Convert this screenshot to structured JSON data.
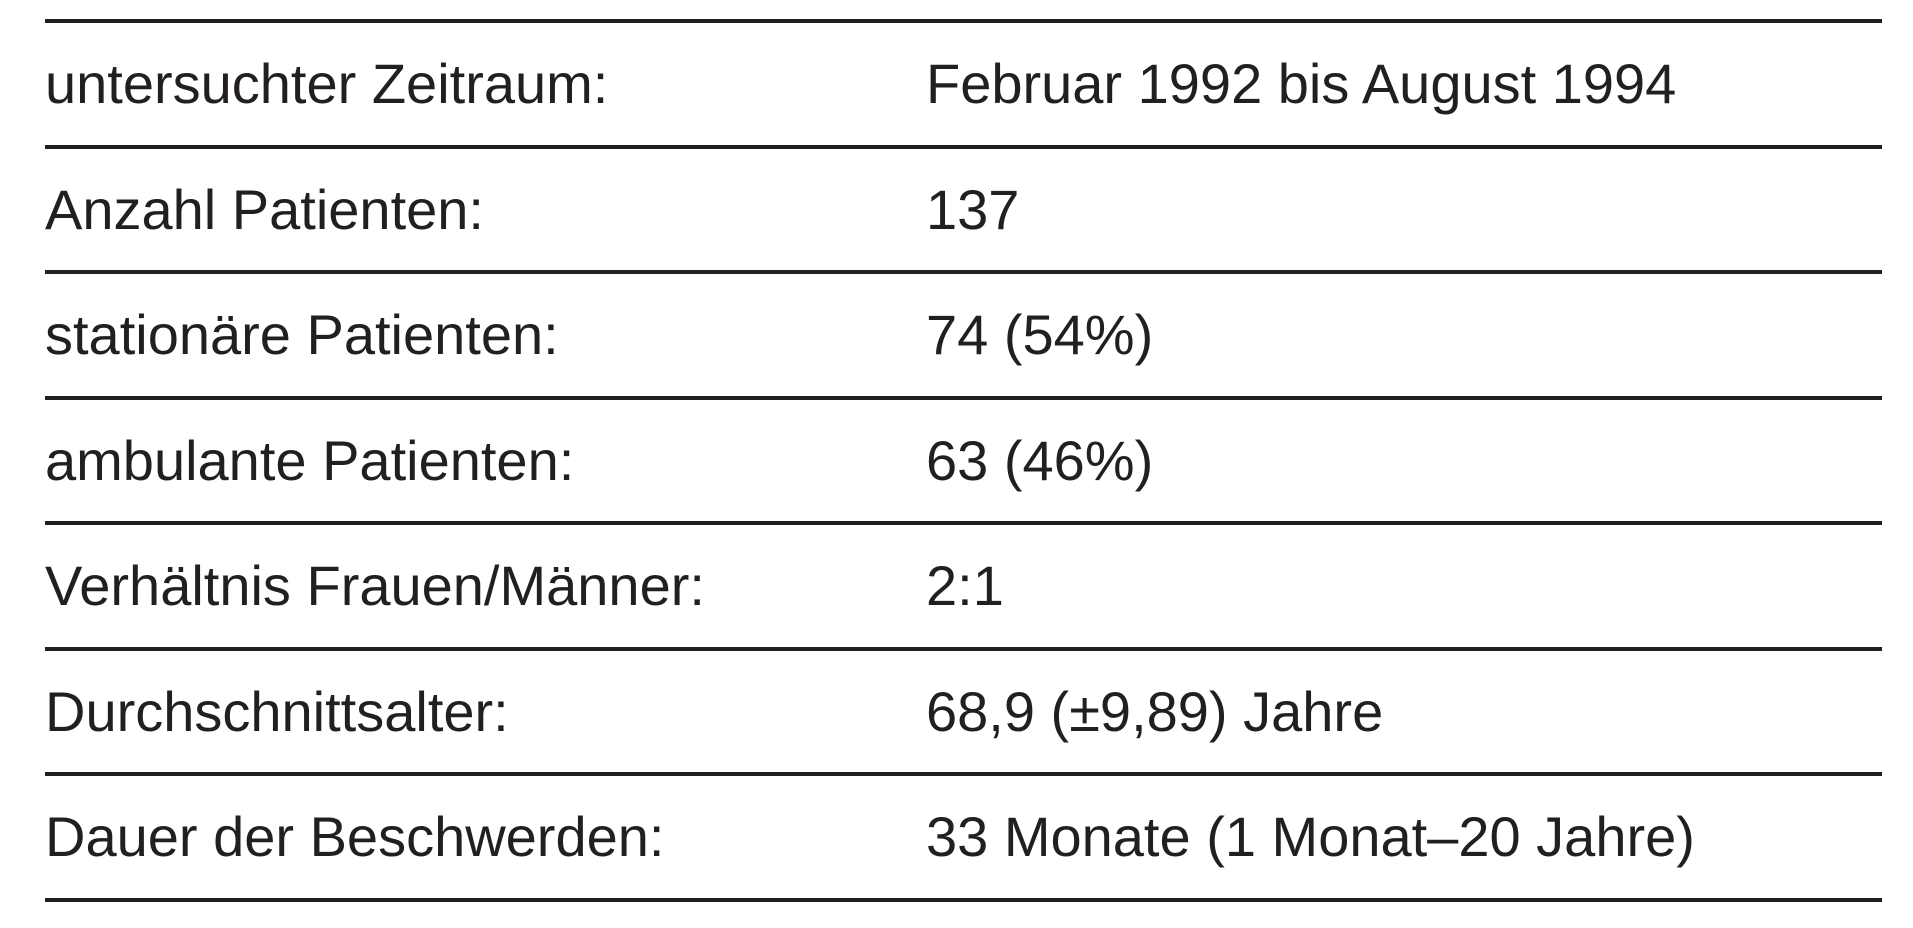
{
  "table": {
    "rows": [
      [
        "untersuchter Zeitraum:",
        "Februar 1992 bis August 1994"
      ],
      [
        "Anzahl Patienten:",
        "137"
      ],
      [
        "stationäre Patienten:",
        "74 (54%)"
      ],
      [
        "ambulante Patienten:",
        "63 (46%)"
      ],
      [
        "Verhältnis Frauen/Männer:",
        "2:1"
      ],
      [
        "Durchschnittsalter:",
        "68,9 (±9,89) Jahre"
      ],
      [
        "Dauer der Beschwerden:",
        "33 Monate (1 Monat–20 Jahre)"
      ]
    ]
  }
}
